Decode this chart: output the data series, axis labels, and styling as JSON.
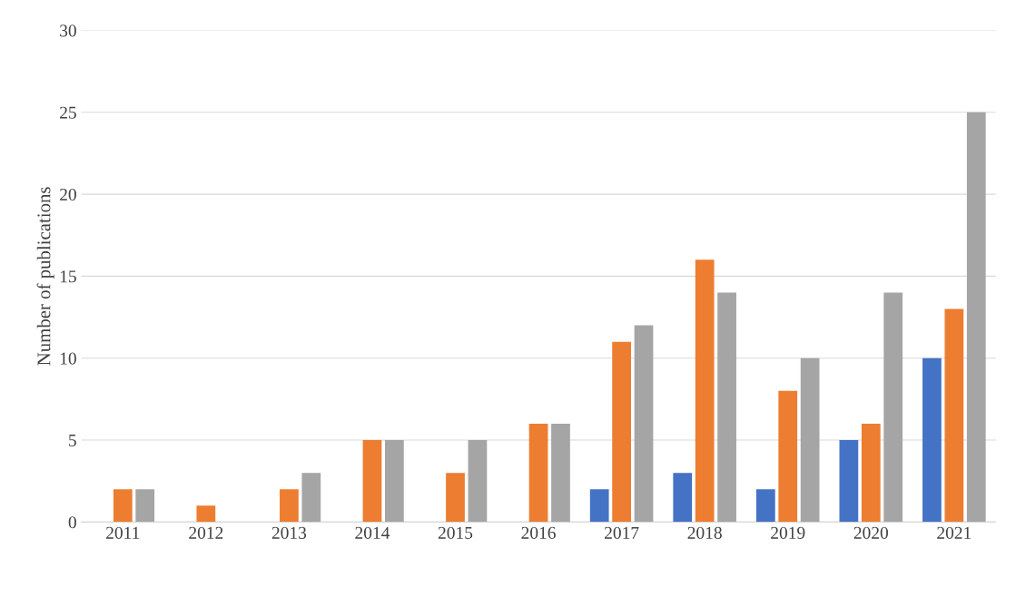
{
  "chart_data": {
    "type": "bar",
    "ylabel": "Number of publications",
    "categories": [
      "2011",
      "2012",
      "2013",
      "2014",
      "2015",
      "2016",
      "2017",
      "2018",
      "2019",
      "2020",
      "2021"
    ],
    "series": [
      {
        "color": "#4472c4",
        "values": [
          0,
          0,
          0,
          0,
          0,
          0,
          2,
          3,
          2,
          5,
          10
        ]
      },
      {
        "color": "#ed7d31",
        "values": [
          2,
          1,
          2,
          5,
          3,
          6,
          11,
          16,
          8,
          6,
          13
        ]
      },
      {
        "color": "#a5a5a5",
        "values": [
          2,
          0,
          3,
          5,
          5,
          6,
          12,
          14,
          10,
          14,
          25
        ]
      }
    ],
    "ylim": [
      0,
      30
    ],
    "yticks": [
      0,
      5,
      10,
      15,
      20,
      25,
      30
    ],
    "grid": "y"
  }
}
